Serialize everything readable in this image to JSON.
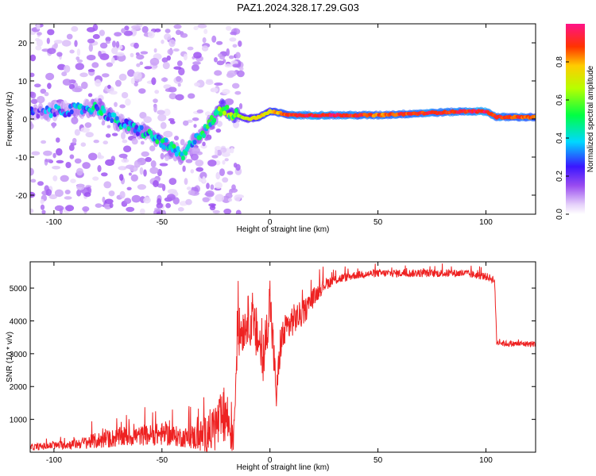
{
  "title": "PAZ1.2024.328.17.29.G03",
  "chart_data": [
    {
      "type": "heatmap",
      "xlabel": "Height of straight line (km)",
      "ylabel": "Frequency (Hz)",
      "xlim": [
        -111,
        123
      ],
      "ylim": [
        -25,
        25
      ],
      "x_ticks": [
        -100,
        -50,
        0,
        50,
        100
      ],
      "y_ticks": [
        -20,
        -10,
        0,
        10,
        20
      ],
      "colorbar": {
        "label": "Normalized spectral amplitude",
        "range": [
          0,
          1
        ],
        "ticks": [
          0.0,
          0.2,
          0.4,
          0.6,
          0.8
        ],
        "tick_labels": [
          "0.0",
          "0.2",
          "0.4",
          "0.6",
          "0.8"
        ]
      },
      "ridge": {
        "x": [
          -108,
          -100,
          -90,
          -80,
          -70,
          -60,
          -50,
          -45,
          -40,
          -35,
          -30,
          -25,
          -22,
          -20,
          -15,
          -10,
          -5,
          0,
          10,
          30,
          50,
          70,
          90,
          100,
          105,
          123
        ],
        "y": [
          1.5,
          2.0,
          2.5,
          3.0,
          -1.0,
          -3.0,
          -6.0,
          -8.0,
          -10.0,
          -5.0,
          -3.0,
          1.0,
          3.0,
          2.0,
          1.0,
          0.0,
          0.5,
          2.0,
          1.0,
          1.0,
          1.0,
          1.5,
          2.0,
          2.0,
          0.5,
          0.5
        ],
        "amplitude": [
          0.15,
          0.2,
          0.25,
          0.3,
          0.3,
          0.3,
          0.35,
          0.4,
          0.35,
          0.3,
          0.35,
          0.4,
          0.5,
          0.5,
          0.6,
          0.7,
          0.75,
          0.75,
          0.9,
          0.95,
          0.85,
          0.9,
          0.9,
          0.95,
          0.9,
          0.85
        ]
      }
    },
    {
      "type": "line",
      "xlabel": "Height of straight line (km)",
      "ylabel": "SNR (10 * v/v)",
      "xlim": [
        -111,
        123
      ],
      "ylim": [
        0,
        5800
      ],
      "x_ticks": [
        -100,
        -50,
        0,
        50,
        100
      ],
      "y_ticks": [
        1000,
        2000,
        3000,
        4000,
        5000
      ],
      "series": [
        {
          "color": "#ee2222",
          "x": [
            -111,
            -100,
            -90,
            -80,
            -70,
            -60,
            -50,
            -40,
            -35,
            -30,
            -25,
            -20,
            -17,
            -15,
            -12,
            -10,
            -5,
            -3,
            0,
            3,
            5,
            10,
            15,
            20,
            25,
            30,
            40,
            50,
            60,
            70,
            80,
            90,
            100,
            104,
            105,
            110,
            123
          ],
          "y": [
            150,
            200,
            250,
            350,
            450,
            500,
            550,
            450,
            450,
            500,
            800,
            1100,
            300,
            3600,
            3800,
            4100,
            3400,
            2600,
            4700,
            1700,
            3400,
            4000,
            4200,
            4700,
            5100,
            5250,
            5400,
            5450,
            5450,
            5450,
            5450,
            5450,
            5350,
            5250,
            3350,
            3300,
            3300
          ],
          "noise": [
            100,
            120,
            150,
            250,
            300,
            300,
            350,
            300,
            400,
            600,
            800,
            900,
            400,
            800,
            700,
            700,
            900,
            600,
            800,
            500,
            600,
            500,
            400,
            300,
            200,
            150,
            120,
            120,
            120,
            120,
            120,
            120,
            120,
            120,
            100,
            90,
            90
          ]
        }
      ]
    }
  ]
}
